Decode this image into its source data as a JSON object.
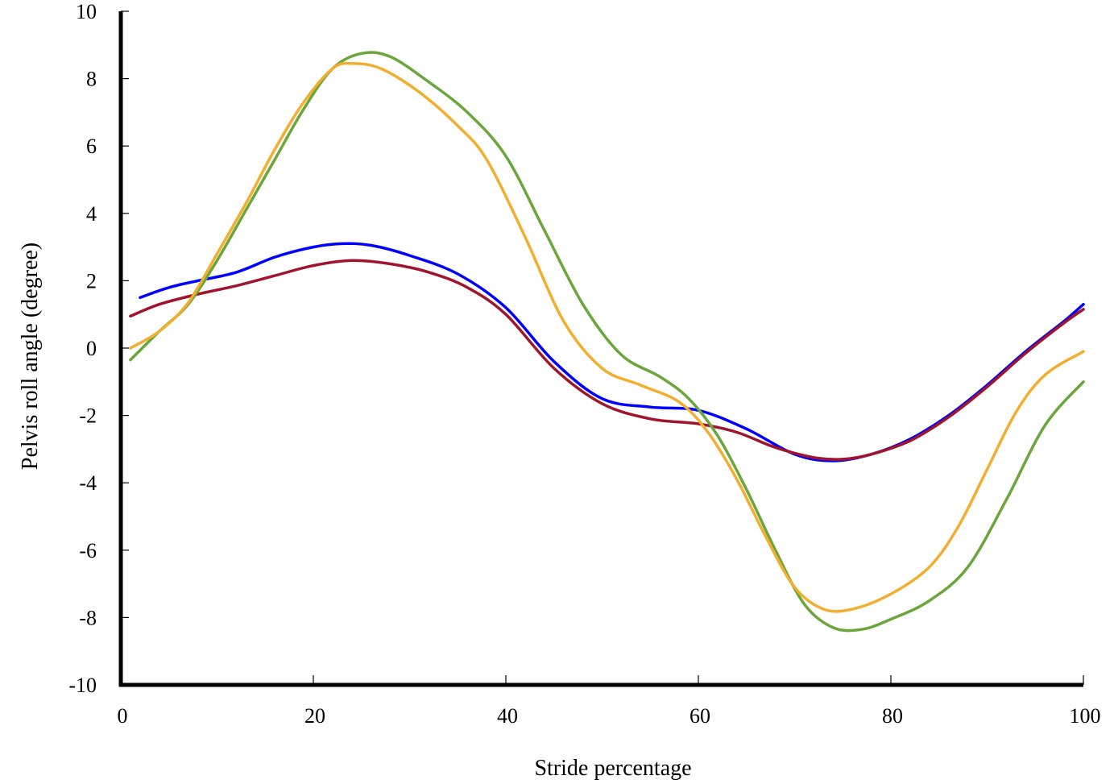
{
  "chart_data": {
    "type": "line",
    "title": "",
    "xlabel": "Stride percentage",
    "ylabel": "Pelvis roll angle (degree)",
    "xlim": [
      0,
      100
    ],
    "ylim": [
      -10,
      10
    ],
    "xticks": [
      0,
      20,
      40,
      60,
      80,
      100
    ],
    "yticks": [
      10,
      8,
      6,
      4,
      2,
      0,
      -2,
      -4,
      -6,
      -8,
      -10
    ],
    "grid": false,
    "legend": "none",
    "series": [
      {
        "color": "#0000FF",
        "points": [
          [
            2,
            1.5
          ],
          [
            5,
            1.8
          ],
          [
            8,
            2.0
          ],
          [
            12,
            2.25
          ],
          [
            16,
            2.7
          ],
          [
            20,
            3.0
          ],
          [
            23,
            3.1
          ],
          [
            26,
            3.05
          ],
          [
            30,
            2.75
          ],
          [
            35,
            2.2
          ],
          [
            40,
            1.2
          ],
          [
            45,
            -0.4
          ],
          [
            50,
            -1.5
          ],
          [
            55,
            -1.75
          ],
          [
            60,
            -1.85
          ],
          [
            65,
            -2.4
          ],
          [
            70,
            -3.15
          ],
          [
            74,
            -3.35
          ],
          [
            78,
            -3.15
          ],
          [
            82,
            -2.7
          ],
          [
            86,
            -2.0
          ],
          [
            90,
            -1.1
          ],
          [
            94,
            -0.1
          ],
          [
            98,
            0.8
          ],
          [
            100,
            1.3
          ]
        ]
      },
      {
        "color": "#A0142C",
        "points": [
          [
            1,
            0.95
          ],
          [
            4,
            1.3
          ],
          [
            8,
            1.6
          ],
          [
            12,
            1.85
          ],
          [
            16,
            2.15
          ],
          [
            20,
            2.45
          ],
          [
            24,
            2.6
          ],
          [
            28,
            2.5
          ],
          [
            32,
            2.25
          ],
          [
            36,
            1.8
          ],
          [
            40,
            1.0
          ],
          [
            45,
            -0.6
          ],
          [
            50,
            -1.65
          ],
          [
            55,
            -2.1
          ],
          [
            60,
            -2.25
          ],
          [
            64,
            -2.5
          ],
          [
            68,
            -2.95
          ],
          [
            72,
            -3.25
          ],
          [
            75,
            -3.3
          ],
          [
            78,
            -3.15
          ],
          [
            82,
            -2.75
          ],
          [
            86,
            -2.05
          ],
          [
            90,
            -1.15
          ],
          [
            94,
            -0.15
          ],
          [
            98,
            0.75
          ],
          [
            100,
            1.15
          ]
        ]
      },
      {
        "color": "#6AA63C",
        "points": [
          [
            1,
            -0.35
          ],
          [
            4,
            0.5
          ],
          [
            7,
            1.3
          ],
          [
            10,
            2.6
          ],
          [
            13,
            4.1
          ],
          [
            16,
            5.6
          ],
          [
            19,
            7.1
          ],
          [
            22,
            8.3
          ],
          [
            25,
            8.75
          ],
          [
            28,
            8.65
          ],
          [
            32,
            7.9
          ],
          [
            36,
            7.0
          ],
          [
            40,
            5.7
          ],
          [
            44,
            3.5
          ],
          [
            48,
            1.3
          ],
          [
            52,
            -0.2
          ],
          [
            56,
            -0.85
          ],
          [
            59,
            -1.5
          ],
          [
            62,
            -2.6
          ],
          [
            65,
            -4.2
          ],
          [
            68,
            -6.0
          ],
          [
            71,
            -7.6
          ],
          [
            74,
            -8.3
          ],
          [
            77,
            -8.35
          ],
          [
            80,
            -8.05
          ],
          [
            84,
            -7.5
          ],
          [
            88,
            -6.5
          ],
          [
            92,
            -4.5
          ],
          [
            96,
            -2.3
          ],
          [
            100,
            -1.0
          ]
        ]
      },
      {
        "color": "#F2AE2E",
        "points": [
          [
            1,
            0.0
          ],
          [
            4,
            0.5
          ],
          [
            7,
            1.35
          ],
          [
            10,
            2.8
          ],
          [
            13,
            4.3
          ],
          [
            16,
            5.9
          ],
          [
            19,
            7.3
          ],
          [
            22,
            8.3
          ],
          [
            24,
            8.45
          ],
          [
            27,
            8.3
          ],
          [
            31,
            7.6
          ],
          [
            35,
            6.6
          ],
          [
            38,
            5.6
          ],
          [
            42,
            3.3
          ],
          [
            46,
            0.8
          ],
          [
            50,
            -0.6
          ],
          [
            54,
            -1.1
          ],
          [
            58,
            -1.6
          ],
          [
            61,
            -2.5
          ],
          [
            64,
            -3.9
          ],
          [
            67,
            -5.6
          ],
          [
            70,
            -7.1
          ],
          [
            73,
            -7.75
          ],
          [
            76,
            -7.75
          ],
          [
            80,
            -7.3
          ],
          [
            84,
            -6.5
          ],
          [
            87,
            -5.3
          ],
          [
            90,
            -3.6
          ],
          [
            93,
            -1.9
          ],
          [
            96,
            -0.8
          ],
          [
            100,
            -0.1
          ]
        ]
      }
    ]
  }
}
